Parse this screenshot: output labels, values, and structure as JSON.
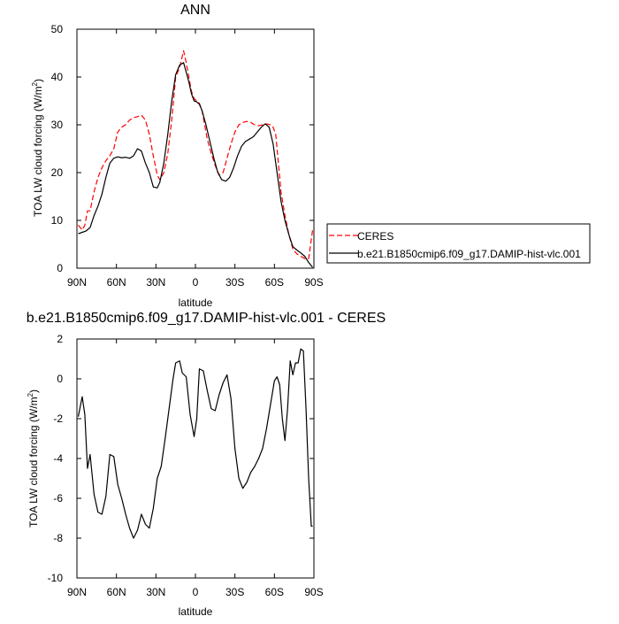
{
  "chart_data": [
    {
      "type": "line",
      "title": "ANN",
      "xlabel": "latitude",
      "ylabel": "TOA LW cloud forcing (W/m",
      "ylabel_sup": "2",
      "ylabel_close": ")",
      "xlim": [
        90,
        -90
      ],
      "ylim": [
        0,
        50
      ],
      "xticks": [
        90,
        60,
        30,
        0,
        -30,
        -60,
        -90
      ],
      "xtick_labels": [
        "90N",
        "60N",
        "30N",
        "0",
        "30S",
        "60S",
        "90S"
      ],
      "yticks": [
        0,
        10,
        20,
        30,
        40,
        50
      ],
      "ytick_labels": [
        "0",
        "10",
        "20",
        "30",
        "40",
        "50"
      ],
      "legend_position": "right",
      "grid": false,
      "series": [
        {
          "name": "CERES",
          "color": "#ff0000",
          "dash": "dashed",
          "x": [
            89,
            86,
            84,
            82,
            80,
            77,
            74,
            71,
            68,
            65,
            62,
            59,
            56,
            53,
            50,
            47,
            44,
            41,
            38,
            35,
            32,
            29,
            27,
            24,
            21,
            18,
            15,
            12,
            9,
            7,
            5,
            3,
            1,
            -1,
            -3,
            -5,
            -7,
            -9,
            -12,
            -15,
            -18,
            -21,
            -24,
            -27,
            -30,
            -33,
            -36,
            -39,
            -42,
            -45,
            -48,
            -51,
            -54,
            -57,
            -59,
            -61,
            -63,
            -65,
            -68,
            -71,
            -74,
            -77,
            -80,
            -83,
            -86,
            -88,
            -89
          ],
          "y": [
            9,
            8,
            9,
            12,
            12,
            16,
            19,
            21,
            22.5,
            23.5,
            25,
            28.5,
            29.5,
            30,
            31,
            31.5,
            31.7,
            32,
            31,
            28,
            23.5,
            19.5,
            18.5,
            20,
            24,
            31,
            40,
            42,
            45.5,
            43,
            40,
            37,
            35.5,
            35,
            34.5,
            33,
            30,
            27,
            24,
            21.5,
            19.5,
            20,
            23,
            26,
            28.5,
            30,
            30.5,
            30.7,
            30.5,
            30,
            29.8,
            30,
            30.2,
            30,
            29.5,
            28,
            22,
            16,
            11,
            7,
            4,
            3,
            2.5,
            2,
            2,
            6,
            8
          ]
        },
        {
          "name": "b.e21.B1850cmip6.f09_g17.DAMIP-hist-vlc.001",
          "color": "#000000",
          "dash": "solid",
          "x": [
            89,
            86,
            83,
            80,
            77,
            74,
            71,
            68,
            65,
            62,
            59,
            56,
            53,
            50,
            47,
            44,
            41,
            38,
            35,
            32,
            29,
            27,
            24,
            21,
            18,
            15,
            12,
            9,
            7,
            5,
            3,
            1,
            -1,
            -3,
            -5,
            -8,
            -11,
            -14,
            -17,
            -20,
            -23,
            -26,
            -29,
            -32,
            -35,
            -38,
            -41,
            -44,
            -47,
            -50,
            -53,
            -56,
            -59,
            -62,
            -65,
            -68,
            -71,
            -74,
            -77,
            -80,
            -83,
            -86,
            -88,
            -89
          ],
          "y": [
            7.2,
            7.5,
            7.8,
            8.5,
            11,
            13,
            15.5,
            19,
            22,
            23,
            23.3,
            23.1,
            23.2,
            23,
            23.5,
            25,
            24.5,
            22,
            20,
            17,
            16.8,
            18,
            22,
            28,
            35,
            40.5,
            42.5,
            43,
            41,
            39,
            36.5,
            35,
            34.8,
            34.3,
            33,
            30,
            26.5,
            23,
            20,
            18.5,
            18.2,
            19,
            21,
            23.5,
            25.5,
            26.5,
            27,
            27.5,
            28.5,
            29.5,
            30.2,
            29.5,
            26,
            20,
            14,
            10,
            7,
            4.5,
            3.8,
            3.2,
            2.5,
            1.2,
            0.5,
            0.2
          ]
        }
      ]
    },
    {
      "type": "line",
      "title": "b.e21.B1850cmip6.f09_g17.DAMIP-hist-vlc.001 - CERES",
      "xlabel": "latitude",
      "ylabel": "TOA LW cloud forcing (W/m",
      "ylabel_sup": "2",
      "ylabel_close": ")",
      "xlim": [
        90,
        -90
      ],
      "ylim": [
        -10,
        2
      ],
      "xticks": [
        90,
        60,
        30,
        0,
        -30,
        -60,
        -90
      ],
      "xtick_labels": [
        "90N",
        "60N",
        "30N",
        "0",
        "30S",
        "60S",
        "90S"
      ],
      "yticks": [
        -10,
        -8,
        -6,
        -4,
        -2,
        0,
        2
      ],
      "ytick_labels": [
        "-10",
        "-8",
        "-6",
        "-4",
        "-2",
        "0",
        "2"
      ],
      "grid": false,
      "series": [
        {
          "color": "#000000",
          "dash": "solid",
          "x": [
            89,
            86,
            84,
            82,
            80,
            77,
            74,
            71,
            68,
            65,
            62,
            59,
            56,
            53,
            50,
            47,
            44,
            41,
            38,
            35,
            32,
            29,
            26,
            23,
            20,
            17,
            15,
            12,
            10,
            7,
            4,
            1,
            -1,
            -3,
            -6,
            -9,
            -12,
            -15,
            -18,
            -21,
            -24,
            -27,
            -30,
            -33,
            -36,
            -39,
            -42,
            -45,
            -48,
            -51,
            -54,
            -57,
            -60,
            -62,
            -64,
            -66,
            -68,
            -70,
            -72,
            -74,
            -76,
            -78,
            -80,
            -82,
            -84,
            -86,
            -88,
            -89
          ],
          "y": [
            -1.9,
            -0.9,
            -1.8,
            -4.5,
            -3.8,
            -5.8,
            -6.7,
            -6.8,
            -5.9,
            -3.8,
            -3.9,
            -5.3,
            -6.0,
            -6.8,
            -7.5,
            -8.0,
            -7.6,
            -6.8,
            -7.3,
            -7.5,
            -6.5,
            -5.0,
            -4.4,
            -3.0,
            -1.5,
            0.0,
            0.8,
            0.9,
            0.3,
            0.1,
            -1.8,
            -2.9,
            -2.0,
            0.5,
            0.4,
            -0.6,
            -1.5,
            -1.6,
            -0.8,
            -0.2,
            0.2,
            -1.0,
            -3.5,
            -5.0,
            -5.5,
            -5.2,
            -4.7,
            -4.4,
            -4.0,
            -3.5,
            -2.5,
            -1.3,
            -0.1,
            0.1,
            -0.3,
            -2.0,
            -3.1,
            -1.5,
            0.9,
            0.2,
            0.8,
            0.8,
            1.5,
            1.4,
            -1.5,
            -5.0,
            -7.4,
            -7.4
          ]
        }
      ]
    }
  ]
}
